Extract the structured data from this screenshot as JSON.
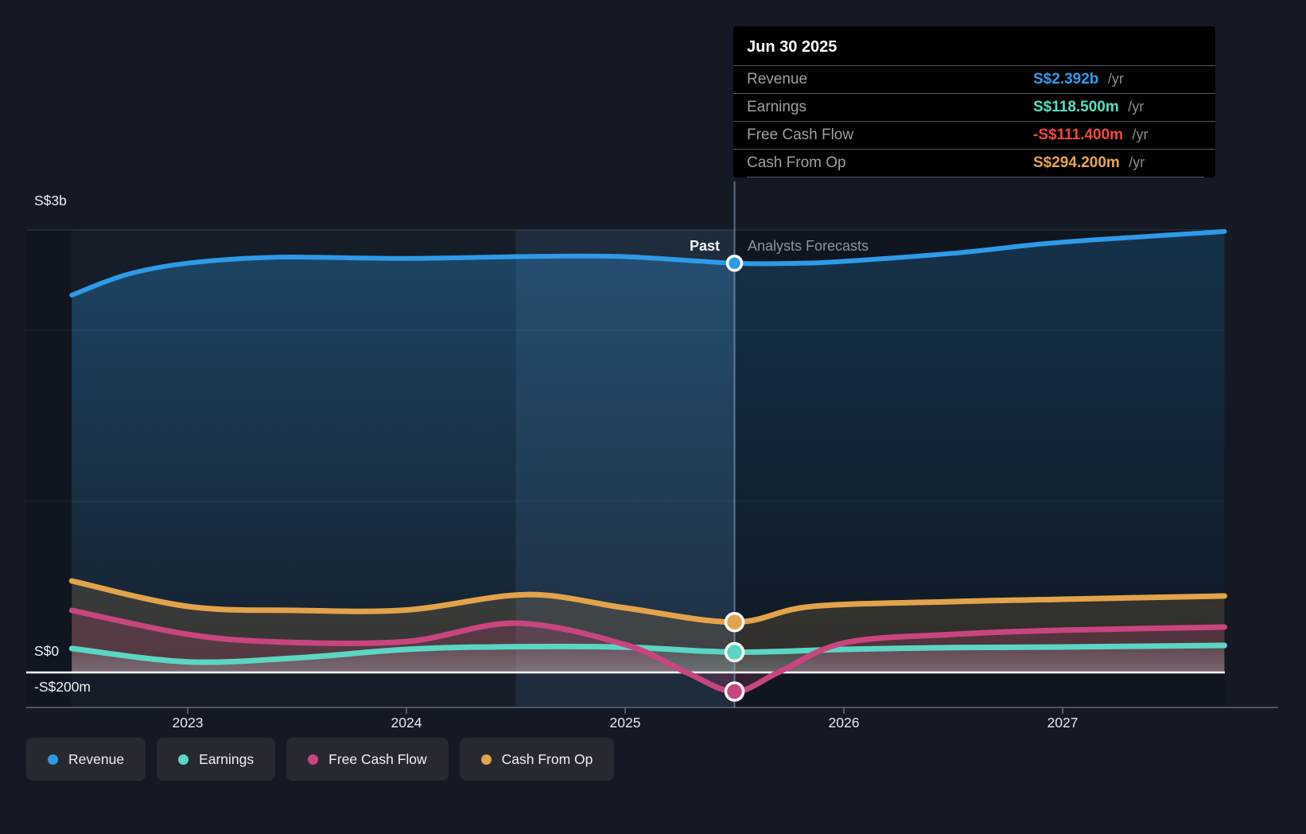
{
  "colors": {
    "revenue": "#2e9ae8",
    "earnings": "#5bd6c2",
    "free_cash_flow": "#c9457f",
    "cash_from_op": "#e3a34b",
    "revenue_value": "#2d9cee",
    "earnings_value": "#55e0c0",
    "fcf_value": "#f3493d",
    "cash_from_op_value": "#e8a64b",
    "page_bg": "#141923",
    "tooltip_bg": "#000000",
    "zero_line": "#ffffff",
    "ltm_band": "rgba(98,156,214,0.12)",
    "forecast_overlay": "rgba(6,9,14,0.32)"
  },
  "tooltip": {
    "title": "Jun 30 2025",
    "rows": [
      {
        "label": "Revenue",
        "value": "S$2.392b",
        "suffix": "/yr"
      },
      {
        "label": "Earnings",
        "value": "S$118.500m",
        "suffix": "/yr"
      },
      {
        "label": "Free Cash Flow",
        "value": "-S$111.400m",
        "suffix": "/yr"
      },
      {
        "label": "Cash From Op",
        "value": "S$294.200m",
        "suffix": "/yr"
      }
    ]
  },
  "annotations": {
    "past": "Past",
    "forecast": "Analysts Forecasts"
  },
  "legend": [
    {
      "label": "Revenue"
    },
    {
      "label": "Earnings"
    },
    {
      "label": "Free Cash Flow"
    },
    {
      "label": "Cash From Op"
    }
  ],
  "axes": {
    "y_labels": [
      {
        "text": "S$3b",
        "value": 3
      },
      {
        "text": "S$0",
        "value": 0
      },
      {
        "text": "-S$200m",
        "value": -0.2
      }
    ],
    "x_labels": [
      "2023",
      "2024",
      "2025",
      "2026",
      "2027"
    ]
  },
  "chart_data": {
    "type": "area",
    "title": "Revenue, Earnings, Free Cash Flow and Cash From Op — past and analysts forecasts",
    "unit": "S$ billions per year",
    "x_unit": "calendar year (fractional)",
    "x_range": [
      2022.47,
      2027.74
    ],
    "ylim": [
      -0.3,
      3
    ],
    "y_gridlines_unlabeled": [
      1,
      2
    ],
    "grid": "horizontal only",
    "legend_position": "bottom-left",
    "divider": {
      "x": 2025.5,
      "date": "Jun 30 2025"
    },
    "ltm_highlight": [
      2024.5,
      2025.5
    ],
    "markers": {
      "x": 2025.5,
      "revenue": 2.392,
      "earnings": 0.1185,
      "free_cash_flow": -0.1114,
      "cash_from_op": 0.2942
    },
    "series": [
      {
        "name": "Revenue",
        "color_key": "revenue",
        "width": 6,
        "points": [
          [
            2022.47,
            2.205
          ],
          [
            2022.72,
            2.325
          ],
          [
            2023.0,
            2.392
          ],
          [
            2023.4,
            2.427
          ],
          [
            2024.0,
            2.42
          ],
          [
            2024.6,
            2.432
          ],
          [
            2025.0,
            2.43
          ],
          [
            2025.5,
            2.392
          ],
          [
            2025.8,
            2.392
          ],
          [
            2026.0,
            2.403
          ],
          [
            2026.5,
            2.45
          ],
          [
            2027.0,
            2.515
          ],
          [
            2027.74,
            2.577
          ]
        ]
      },
      {
        "name": "Cash From Op",
        "color_key": "cash_from_op",
        "width": 7,
        "points": [
          [
            2022.47,
            0.535
          ],
          [
            2023.0,
            0.386
          ],
          [
            2023.5,
            0.363
          ],
          [
            2024.0,
            0.365
          ],
          [
            2024.55,
            0.455
          ],
          [
            2025.0,
            0.377
          ],
          [
            2025.5,
            0.2942
          ],
          [
            2025.85,
            0.385
          ],
          [
            2026.5,
            0.414
          ],
          [
            2027.0,
            0.428
          ],
          [
            2027.74,
            0.447
          ]
        ]
      },
      {
        "name": "Earnings",
        "color_key": "earnings",
        "width": 7,
        "points": [
          [
            2022.47,
            0.14
          ],
          [
            2023.0,
            0.062
          ],
          [
            2023.5,
            0.085
          ],
          [
            2024.0,
            0.135
          ],
          [
            2024.45,
            0.15
          ],
          [
            2025.0,
            0.148
          ],
          [
            2025.5,
            0.1185
          ],
          [
            2026.0,
            0.135
          ],
          [
            2026.5,
            0.145
          ],
          [
            2027.0,
            0.149
          ],
          [
            2027.74,
            0.158
          ]
        ]
      },
      {
        "name": "Free Cash Flow",
        "color_key": "free_cash_flow",
        "width": 7,
        "points": [
          [
            2022.47,
            0.363
          ],
          [
            2023.0,
            0.223
          ],
          [
            2023.42,
            0.178
          ],
          [
            2024.0,
            0.181
          ],
          [
            2024.5,
            0.288
          ],
          [
            2025.0,
            0.163
          ],
          [
            2025.28,
            0.0
          ],
          [
            2025.5,
            -0.1114
          ],
          [
            2025.7,
            0.0
          ],
          [
            2026.0,
            0.172
          ],
          [
            2026.5,
            0.223
          ],
          [
            2027.0,
            0.247
          ],
          [
            2027.74,
            0.265
          ]
        ]
      }
    ]
  }
}
